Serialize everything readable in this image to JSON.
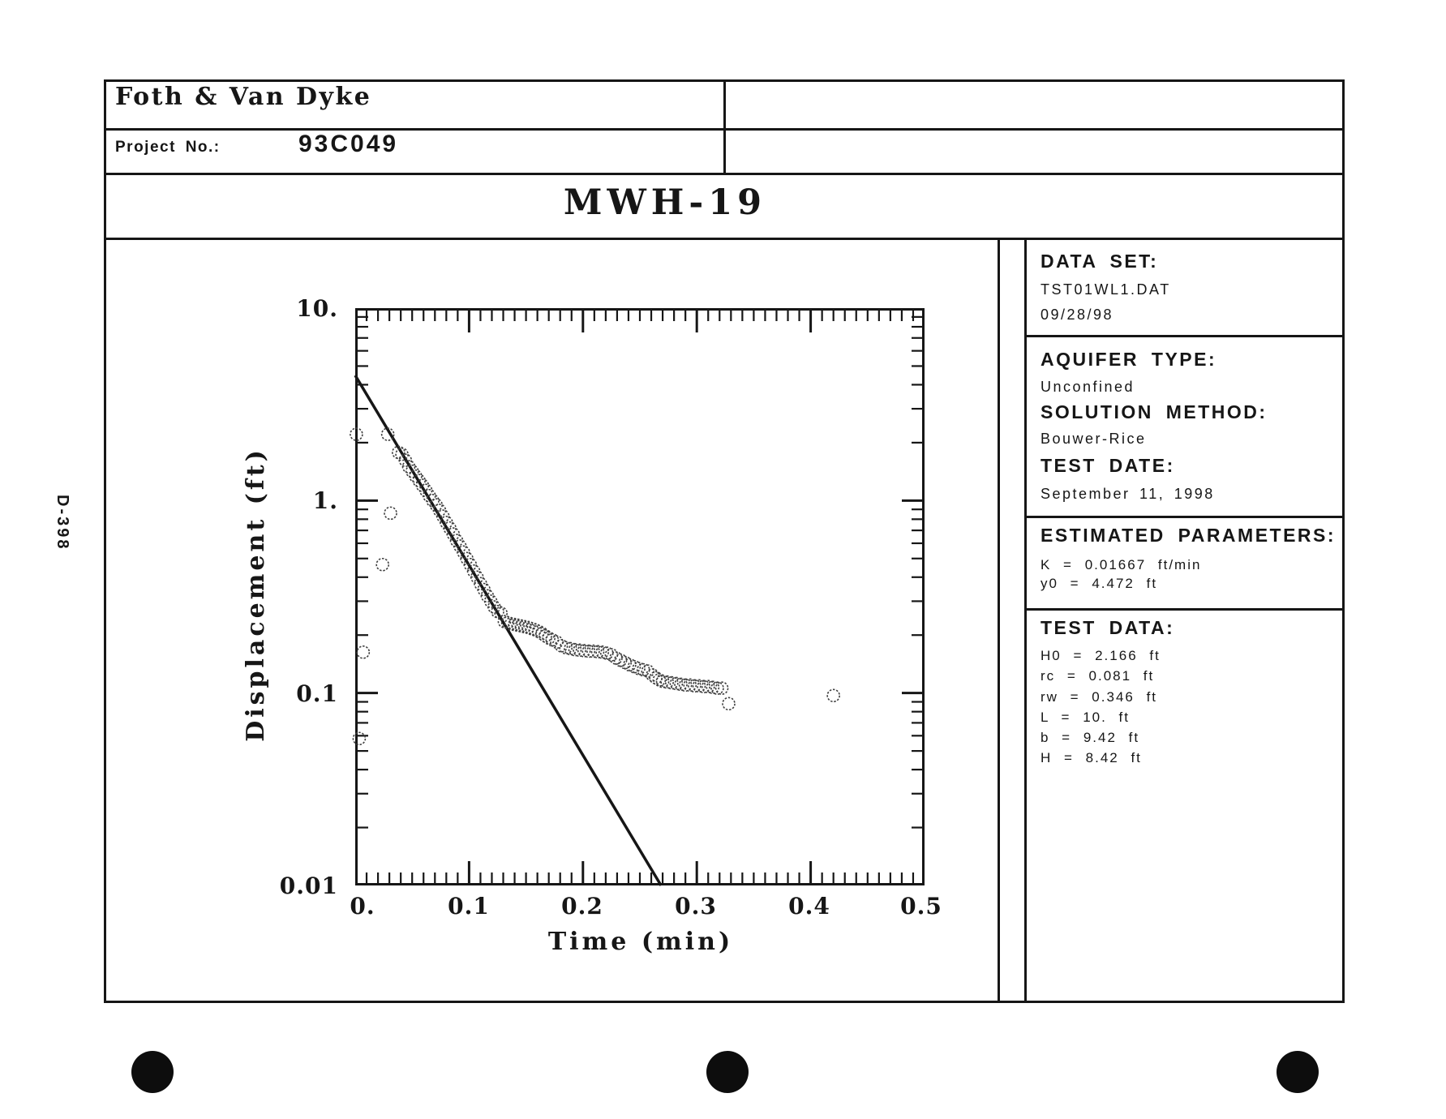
{
  "page": {
    "sheet_label": "D-398"
  },
  "header": {
    "company": "Foth & Van Dyke",
    "project_label": "Project No.:",
    "project_number": "93C049",
    "title": "MWH-19"
  },
  "info_panel": {
    "data_set": {
      "heading": "DATA SET:",
      "file": "TST01WL1.DAT",
      "date": "09/28/98"
    },
    "aquifer": {
      "heading": "AQUIFER TYPE:",
      "value": "Unconfined"
    },
    "solution": {
      "heading": "SOLUTION METHOD:",
      "value": "Bouwer-Rice"
    },
    "test_date": {
      "heading": "TEST DATE:",
      "value": "September 11, 1998"
    },
    "estimated": {
      "heading": "ESTIMATED PARAMETERS:",
      "lines": [
        "K = 0.01667 ft/min",
        "y0 = 4.472 ft"
      ]
    },
    "test_data": {
      "heading": "TEST DATA:",
      "lines": [
        "H0 = 2.166 ft",
        "rc = 0.081 ft",
        "rw = 0.346 ft",
        "L = 10. ft",
        "b = 9.42 ft",
        "H = 8.42 ft"
      ]
    }
  },
  "chart_data": {
    "type": "scatter",
    "title": "MWH-19",
    "xlabel": "Time (min)",
    "ylabel": "Displacement (ft)",
    "x_scale": "linear",
    "y_scale": "log",
    "xlim": [
      0,
      0.5
    ],
    "ylim": [
      0.01,
      10
    ],
    "grid": false,
    "legend": false,
    "marker": "open-circle",
    "x_major_ticks": [
      0,
      0.1,
      0.2,
      0.3,
      0.4,
      0.5
    ],
    "x_minor_step": 0.01,
    "x_tick_labels": [
      "0.",
      "0.1",
      "0.2",
      "0.3",
      "0.4",
      "0.5"
    ],
    "y_major_ticks": [
      10,
      1,
      0.1,
      0.01
    ],
    "y_tick_labels": [
      "10.",
      "1.",
      "0.1",
      "0.01"
    ],
    "fit_line": {
      "name": "Bouwer-Rice straight-line fit",
      "start_t": 0.0,
      "start_d": 4.472,
      "end_t": 0.2686,
      "end_d": 0.01
    },
    "points": [
      [
        0.001,
        2.21
      ],
      [
        0.0035,
        0.058
      ],
      [
        0.007,
        0.163
      ],
      [
        0.024,
        0.465
      ],
      [
        0.0286,
        2.21
      ],
      [
        0.031,
        0.86
      ],
      [
        0.038,
        1.78
      ],
      [
        0.041,
        1.74
      ],
      [
        0.044,
        1.62
      ],
      [
        0.047,
        1.5
      ],
      [
        0.05,
        1.42
      ],
      [
        0.053,
        1.34
      ],
      [
        0.056,
        1.27
      ],
      [
        0.059,
        1.2
      ],
      [
        0.062,
        1.13
      ],
      [
        0.065,
        1.06
      ],
      [
        0.068,
        1.0
      ],
      [
        0.071,
        0.95
      ],
      [
        0.074,
        0.89
      ],
      [
        0.077,
        0.83
      ],
      [
        0.08,
        0.77
      ],
      [
        0.083,
        0.72
      ],
      [
        0.086,
        0.67
      ],
      [
        0.089,
        0.62
      ],
      [
        0.092,
        0.58
      ],
      [
        0.095,
        0.54
      ],
      [
        0.098,
        0.5
      ],
      [
        0.101,
        0.465
      ],
      [
        0.104,
        0.43
      ],
      [
        0.107,
        0.4
      ],
      [
        0.11,
        0.37
      ],
      [
        0.113,
        0.345
      ],
      [
        0.116,
        0.32
      ],
      [
        0.119,
        0.3
      ],
      [
        0.122,
        0.28
      ],
      [
        0.125,
        0.265
      ],
      [
        0.128,
        0.26
      ],
      [
        0.131,
        0.235
      ],
      [
        0.134,
        0.232
      ],
      [
        0.137,
        0.229
      ],
      [
        0.14,
        0.227
      ],
      [
        0.143,
        0.225
      ],
      [
        0.146,
        0.223
      ],
      [
        0.149,
        0.221
      ],
      [
        0.152,
        0.219
      ],
      [
        0.155,
        0.216
      ],
      [
        0.158,
        0.213
      ],
      [
        0.161,
        0.209
      ],
      [
        0.164,
        0.204
      ],
      [
        0.167,
        0.198
      ],
      [
        0.17,
        0.193
      ],
      [
        0.173,
        0.189
      ],
      [
        0.177,
        0.184
      ],
      [
        0.181,
        0.176
      ],
      [
        0.185,
        0.172
      ],
      [
        0.189,
        0.17
      ],
      [
        0.193,
        0.168
      ],
      [
        0.197,
        0.167
      ],
      [
        0.201,
        0.166
      ],
      [
        0.205,
        0.165
      ],
      [
        0.209,
        0.165
      ],
      [
        0.213,
        0.164
      ],
      [
        0.217,
        0.163
      ],
      [
        0.221,
        0.161
      ],
      [
        0.225,
        0.158
      ],
      [
        0.229,
        0.152
      ],
      [
        0.233,
        0.148
      ],
      [
        0.237,
        0.144
      ],
      [
        0.241,
        0.14
      ],
      [
        0.245,
        0.137
      ],
      [
        0.249,
        0.134
      ],
      [
        0.253,
        0.132
      ],
      [
        0.257,
        0.13
      ],
      [
        0.261,
        0.124
      ],
      [
        0.264,
        0.12
      ],
      [
        0.267,
        0.117
      ],
      [
        0.27,
        0.115
      ],
      [
        0.274,
        0.114
      ],
      [
        0.278,
        0.113
      ],
      [
        0.282,
        0.112
      ],
      [
        0.286,
        0.111
      ],
      [
        0.29,
        0.11
      ],
      [
        0.294,
        0.11
      ],
      [
        0.298,
        0.109
      ],
      [
        0.302,
        0.109
      ],
      [
        0.306,
        0.108
      ],
      [
        0.31,
        0.108
      ],
      [
        0.314,
        0.107
      ],
      [
        0.318,
        0.106
      ],
      [
        0.322,
        0.106
      ],
      [
        0.328,
        0.088
      ],
      [
        0.42,
        0.097
      ]
    ]
  }
}
